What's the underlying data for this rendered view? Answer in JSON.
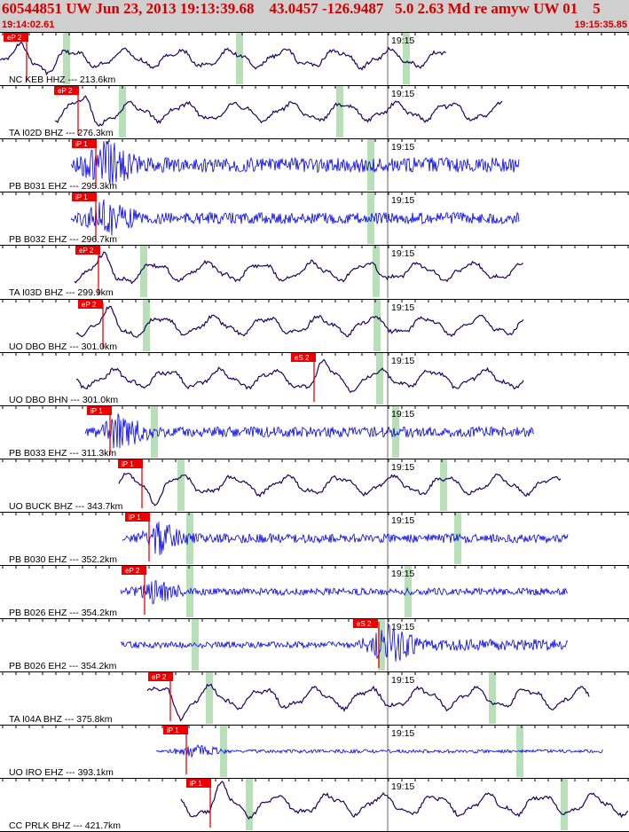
{
  "header": {
    "title": "60544851 UW Jun 23, 2013 19:13:39.68    43.0457 -126.9487   5.0 2.63 Md re amyw UW 01    5",
    "start_time": "19:14:02.61",
    "end_time": "19:15:35.85",
    "background": "#cfcfcf",
    "text_color": "#d00000"
  },
  "minute_label": "19:15",
  "colors": {
    "velocity_trace": "#200060",
    "strain_trace": "#0000ee",
    "pick": "#ee0000",
    "window_band": "#b8e0b8",
    "separator": "#000000"
  },
  "channels": [
    {
      "label": "NC KEB HHZ --- 213.6km",
      "kind": "velocity",
      "picks": [
        "eP 2"
      ]
    },
    {
      "label": "TA I02D BHZ --- 276.3km",
      "kind": "velocity",
      "picks": [
        "eP 2"
      ]
    },
    {
      "label": "PB B031 EHZ --- 295.3km",
      "kind": "strain",
      "picks": [
        "iP 1"
      ]
    },
    {
      "label": "PB B032 EHZ --- 296.7km",
      "kind": "strain",
      "picks": [
        "iP 1"
      ]
    },
    {
      "label": "TA I03D BHZ --- 299.9km",
      "kind": "velocity",
      "picks": [
        "eP 2"
      ]
    },
    {
      "label": "UO DBO BHZ --- 301.0km",
      "kind": "velocity",
      "picks": [
        "eP 2"
      ]
    },
    {
      "label": "UO DBO BHN --- 301.0km",
      "kind": "velocity",
      "picks": [
        "eS 2"
      ]
    },
    {
      "label": "PB B033 EHZ --- 311.3km",
      "kind": "strain",
      "picks": [
        "iP 1"
      ]
    },
    {
      "label": "UO BUCK BHZ --- 343.7km",
      "kind": "velocity",
      "picks": [
        "iP 1"
      ]
    },
    {
      "label": "PB B030 EHZ --- 352.2km",
      "kind": "strain",
      "picks": [
        "iP 1"
      ]
    },
    {
      "label": "PB B026 EHZ --- 354.2km",
      "kind": "strain",
      "picks": [
        "eP 2"
      ]
    },
    {
      "label": "PB B026 EH2 --- 354.2km",
      "kind": "strain",
      "picks": [
        "eS 2"
      ]
    },
    {
      "label": "TA I04A BHZ --- 375.8km",
      "kind": "velocity",
      "picks": [
        "eP 2"
      ]
    },
    {
      "label": "UO IRO EHZ --- 393.1km",
      "kind": "strain",
      "picks": [
        "iP 1"
      ]
    },
    {
      "label": "CC PRLK BHZ --- 421.7km",
      "kind": "velocity",
      "picks": [
        "iP 1"
      ]
    }
  ]
}
